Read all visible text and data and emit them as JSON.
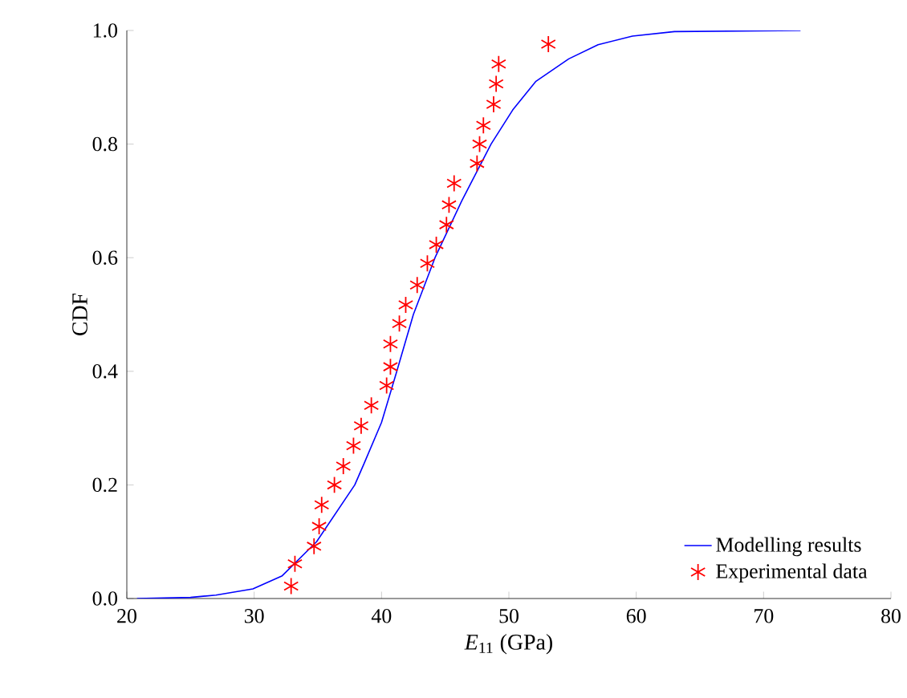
{
  "chart_data": {
    "type": "line",
    "xlabel": "*E*$_{11}$ (GPa)",
    "ylabel": "CDF",
    "xlim": [
      20,
      80
    ],
    "ylim": [
      0,
      1
    ],
    "xticks": [
      20,
      30,
      40,
      50,
      60,
      70,
      80
    ],
    "yticks": [
      {
        "value": 0,
        "label": "0.0"
      },
      0.2,
      0.4,
      0.6,
      0.8,
      {
        "value": 1,
        "label": "1.0"
      }
    ],
    "legend": "bottom right",
    "series": [
      {
        "name": "Modelling results",
        "color": "#0000ff",
        "marker": "none",
        "line_style": "solid",
        "x": [
          20.8,
          25,
          27,
          29.9,
          32.2,
          34.9,
          37.9,
          38.6,
          40,
          41.2,
          42.5,
          44.2,
          46.3,
          48.6,
          50.3,
          52.1,
          54.7,
          57,
          59.7,
          63,
          72.9
        ],
        "values": [
          0,
          0.002,
          0.006,
          0.017,
          0.04,
          0.1,
          0.2,
          0.236,
          0.31,
          0.4,
          0.5,
          0.6,
          0.7,
          0.8,
          0.86,
          0.91,
          0.95,
          0.975,
          0.99,
          0.998,
          1
        ]
      },
      {
        "name": "Experimental data",
        "type": "scatter",
        "color": "#ff0000",
        "marker": "cross",
        "x": [
          32.9,
          33.2,
          34.7,
          35.1,
          35.3,
          36.3,
          37.0,
          37.8,
          38.4,
          39.2,
          40.4,
          40.7,
          40.7,
          41.4,
          41.9,
          42.8,
          43.6,
          44.3,
          45.1,
          45.3,
          45.7,
          47.5,
          47.7,
          48.0,
          48.8,
          49.0,
          49.2,
          53.1
        ],
        "values": [
          0.022,
          0.061,
          0.092,
          0.127,
          0.165,
          0.2,
          0.233,
          0.269,
          0.304,
          0.34,
          0.375,
          0.408,
          0.448,
          0.484,
          0.517,
          0.552,
          0.59,
          0.623,
          0.658,
          0.693,
          0.731,
          0.766,
          0.8,
          0.833,
          0.87,
          0.906,
          0.941,
          0.976
        ]
      }
    ]
  }
}
